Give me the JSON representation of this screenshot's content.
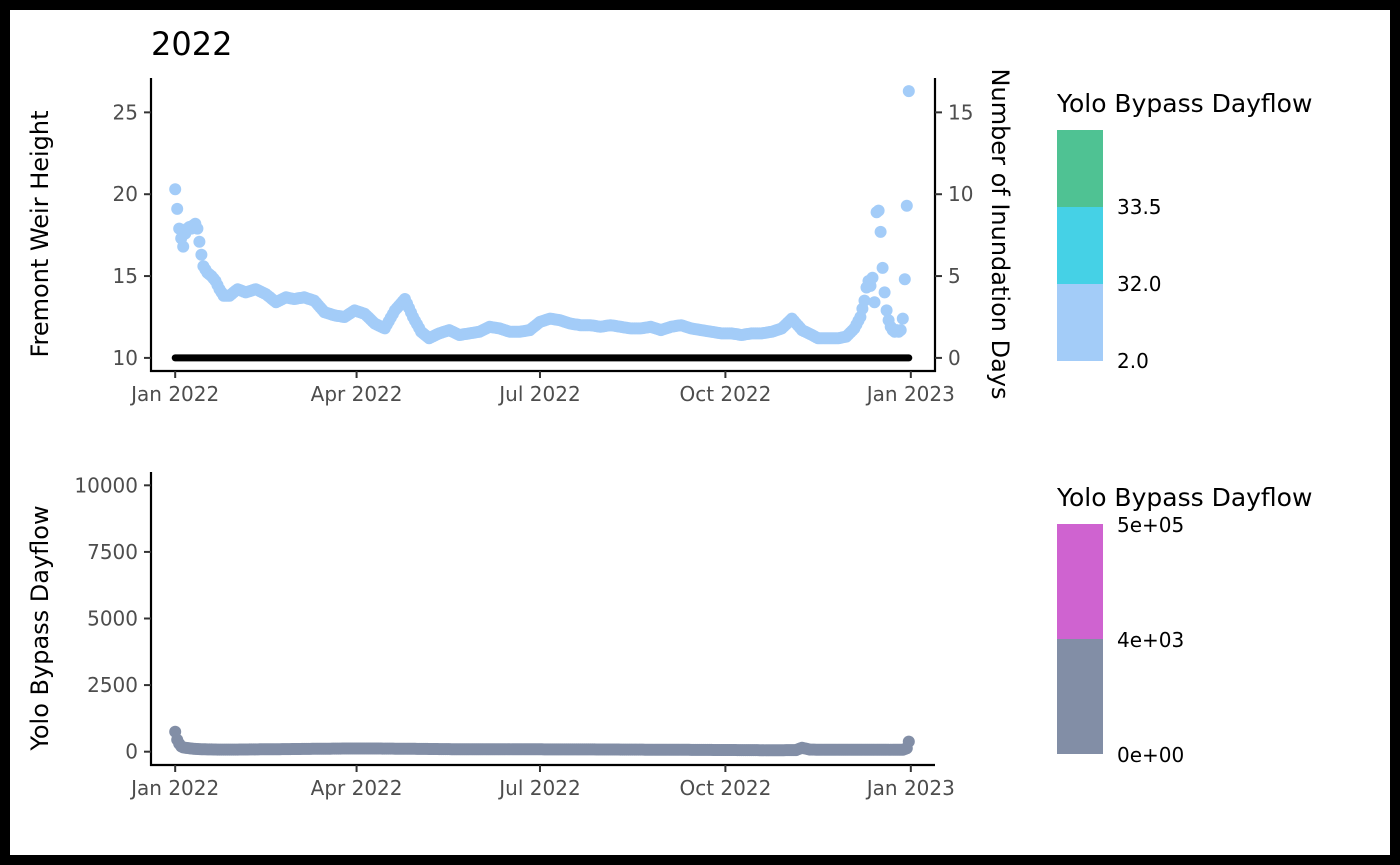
{
  "chart_data": [
    {
      "type": "scatter",
      "title": "2022",
      "xlabel": "",
      "ylabel": "Fremont Weir Height",
      "ylabel_right": "Number of Inundation Days",
      "x_ticks": [
        "Jan 2022",
        "Apr 2022",
        "Jul 2022",
        "Oct 2022",
        "Jan 2023"
      ],
      "x_tick_dates": [
        "2022-01-01",
        "2022-04-01",
        "2022-07-01",
        "2022-10-01",
        "2023-01-01"
      ],
      "xlim": [
        "2021-12-20",
        "2023-01-13"
      ],
      "y_ticks": [
        10,
        15,
        20,
        25
      ],
      "y_ticks_labels": [
        "10",
        "15",
        "20",
        "25"
      ],
      "ylim": [
        9.2,
        27.1
      ],
      "y_right_ticks": [
        0,
        5,
        10,
        15
      ],
      "y_right_ticks_labels": [
        "0",
        "5",
        "10",
        "15"
      ],
      "ylim_right": [
        -0.8,
        17.1
      ],
      "grid": false,
      "legend": {
        "title": "Yolo Bypass Dayflow",
        "position": "right",
        "bins": [
          {
            "color": "#A3CCF8"
          },
          {
            "color": "#45D1E6"
          },
          {
            "color": "#4FC293"
          }
        ],
        "labels": [
          "2.0",
          "32.0",
          "33.5"
        ]
      },
      "series": [
        {
          "color": "#A3CCF8",
          "x": [
            "2022-01-01",
            "2022-01-02",
            "2022-01-03",
            "2022-01-04",
            "2022-01-05",
            "2022-01-06",
            "2022-01-07",
            "2022-01-08",
            "2022-01-09",
            "2022-01-10",
            "2022-01-11",
            "2022-01-12",
            "2022-01-13",
            "2022-01-14",
            "2022-01-15",
            "2022-01-17",
            "2022-01-19",
            "2022-01-21",
            "2022-01-23",
            "2022-01-25",
            "2022-01-28",
            "2022-02-01",
            "2022-02-05",
            "2022-02-10",
            "2022-02-15",
            "2022-02-20",
            "2022-02-25",
            "2022-03-01",
            "2022-03-06",
            "2022-03-11",
            "2022-03-16",
            "2022-03-21",
            "2022-03-26",
            "2022-03-31",
            "2022-04-05",
            "2022-04-10",
            "2022-04-15",
            "2022-04-20",
            "2022-04-25",
            "2022-04-29",
            "2022-05-03",
            "2022-05-07",
            "2022-05-12",
            "2022-05-17",
            "2022-05-22",
            "2022-05-27",
            "2022-06-01",
            "2022-06-06",
            "2022-06-11",
            "2022-06-16",
            "2022-06-21",
            "2022-06-26",
            "2022-07-01",
            "2022-07-06",
            "2022-07-11",
            "2022-07-16",
            "2022-07-21",
            "2022-07-26",
            "2022-07-31",
            "2022-08-05",
            "2022-08-10",
            "2022-08-15",
            "2022-08-20",
            "2022-08-25",
            "2022-08-30",
            "2022-09-04",
            "2022-09-09",
            "2022-09-14",
            "2022-09-19",
            "2022-09-24",
            "2022-09-29",
            "2022-10-04",
            "2022-10-09",
            "2022-10-14",
            "2022-10-19",
            "2022-10-24",
            "2022-10-29",
            "2022-11-03",
            "2022-11-08",
            "2022-11-13",
            "2022-11-16",
            "2022-11-19",
            "2022-11-22",
            "2022-11-26",
            "2022-11-30",
            "2022-12-04",
            "2022-12-07",
            "2022-12-08",
            "2022-12-09",
            "2022-12-10",
            "2022-12-11",
            "2022-12-12",
            "2022-12-13",
            "2022-12-14",
            "2022-12-15",
            "2022-12-16",
            "2022-12-17",
            "2022-12-18",
            "2022-12-19",
            "2022-12-20",
            "2022-12-21",
            "2022-12-22",
            "2022-12-23",
            "2022-12-24",
            "2022-12-25",
            "2022-12-26",
            "2022-12-27",
            "2022-12-28",
            "2022-12-29",
            "2022-12-30",
            "2022-12-31"
          ],
          "y": [
            20.3,
            19.1,
            17.9,
            17.3,
            16.8,
            17.6,
            17.9,
            18.0,
            17.9,
            18.1,
            18.2,
            17.9,
            17.1,
            16.3,
            15.6,
            15.2,
            15.0,
            14.7,
            14.2,
            13.8,
            13.8,
            14.2,
            14.0,
            14.2,
            13.9,
            13.4,
            13.7,
            13.6,
            13.7,
            13.5,
            12.8,
            12.6,
            12.5,
            12.9,
            12.7,
            12.1,
            11.8,
            12.9,
            13.6,
            12.5,
            11.6,
            11.2,
            11.5,
            11.7,
            11.4,
            11.5,
            11.6,
            11.9,
            11.8,
            11.6,
            11.6,
            11.7,
            12.2,
            12.4,
            12.3,
            12.1,
            12.0,
            12.0,
            11.9,
            12.0,
            11.9,
            11.8,
            11.8,
            11.9,
            11.7,
            11.9,
            12.0,
            11.8,
            11.7,
            11.6,
            11.5,
            11.5,
            11.4,
            11.5,
            11.5,
            11.6,
            11.8,
            12.4,
            11.7,
            11.4,
            11.2,
            11.2,
            11.2,
            11.2,
            11.3,
            11.8,
            12.5,
            13.0,
            13.5,
            14.3,
            14.7,
            14.4,
            14.9,
            13.4,
            18.9,
            19.0,
            17.7,
            15.5,
            14.0,
            12.9,
            12.3,
            11.9,
            11.7,
            11.6,
            11.7,
            11.6,
            11.7,
            12.4,
            14.8,
            19.3,
            26.3
          ]
        },
        {
          "color": "#000000",
          "axis": "right",
          "x_range": [
            "2022-01-01",
            "2022-12-31"
          ],
          "y": 0
        }
      ]
    },
    {
      "type": "scatter",
      "title": "",
      "xlabel": "",
      "ylabel": "Yolo Bypass Dayflow",
      "x_ticks": [
        "Jan 2022",
        "Apr 2022",
        "Jul 2022",
        "Oct 2022",
        "Jan 2023"
      ],
      "x_tick_dates": [
        "2022-01-01",
        "2022-04-01",
        "2022-07-01",
        "2022-10-01",
        "2023-01-01"
      ],
      "xlim": [
        "2021-12-20",
        "2023-01-13"
      ],
      "y_ticks": [
        0,
        2500,
        5000,
        7500,
        10000
      ],
      "y_ticks_labels": [
        "0",
        "2500",
        "5000",
        "7500",
        "10000"
      ],
      "ylim": [
        -500,
        10500
      ],
      "grid": false,
      "legend": {
        "title": "Yolo Bypass Dayflow",
        "position": "right",
        "bins": [
          {
            "color": "#828EA6"
          },
          {
            "color": "#CF63D0"
          }
        ],
        "labels": [
          "0e+00",
          "4e+03",
          "5e+05"
        ]
      },
      "series": [
        {
          "color": "#828EA6",
          "x": [
            "2022-01-01",
            "2022-01-02",
            "2022-01-03",
            "2022-01-04",
            "2022-01-05",
            "2022-01-07",
            "2022-01-10",
            "2022-01-15",
            "2022-01-22",
            "2022-02-01",
            "2022-02-15",
            "2022-03-01",
            "2022-03-15",
            "2022-03-27",
            "2022-04-10",
            "2022-04-25",
            "2022-05-10",
            "2022-05-25",
            "2022-06-10",
            "2022-06-25",
            "2022-07-10",
            "2022-07-25",
            "2022-08-10",
            "2022-08-25",
            "2022-09-10",
            "2022-09-25",
            "2022-10-10",
            "2022-10-25",
            "2022-11-05",
            "2022-11-08",
            "2022-11-12",
            "2022-11-20",
            "2022-12-01",
            "2022-12-10",
            "2022-12-20",
            "2022-12-28",
            "2022-12-30",
            "2022-12-31"
          ],
          "y": [
            750,
            450,
            300,
            200,
            160,
            140,
            110,
            90,
            80,
            80,
            90,
            100,
            110,
            120,
            120,
            110,
            100,
            90,
            95,
            90,
            85,
            85,
            80,
            75,
            70,
            65,
            60,
            55,
            60,
            150,
            80,
            70,
            70,
            70,
            70,
            70,
            130,
            380
          ]
        }
      ]
    }
  ]
}
